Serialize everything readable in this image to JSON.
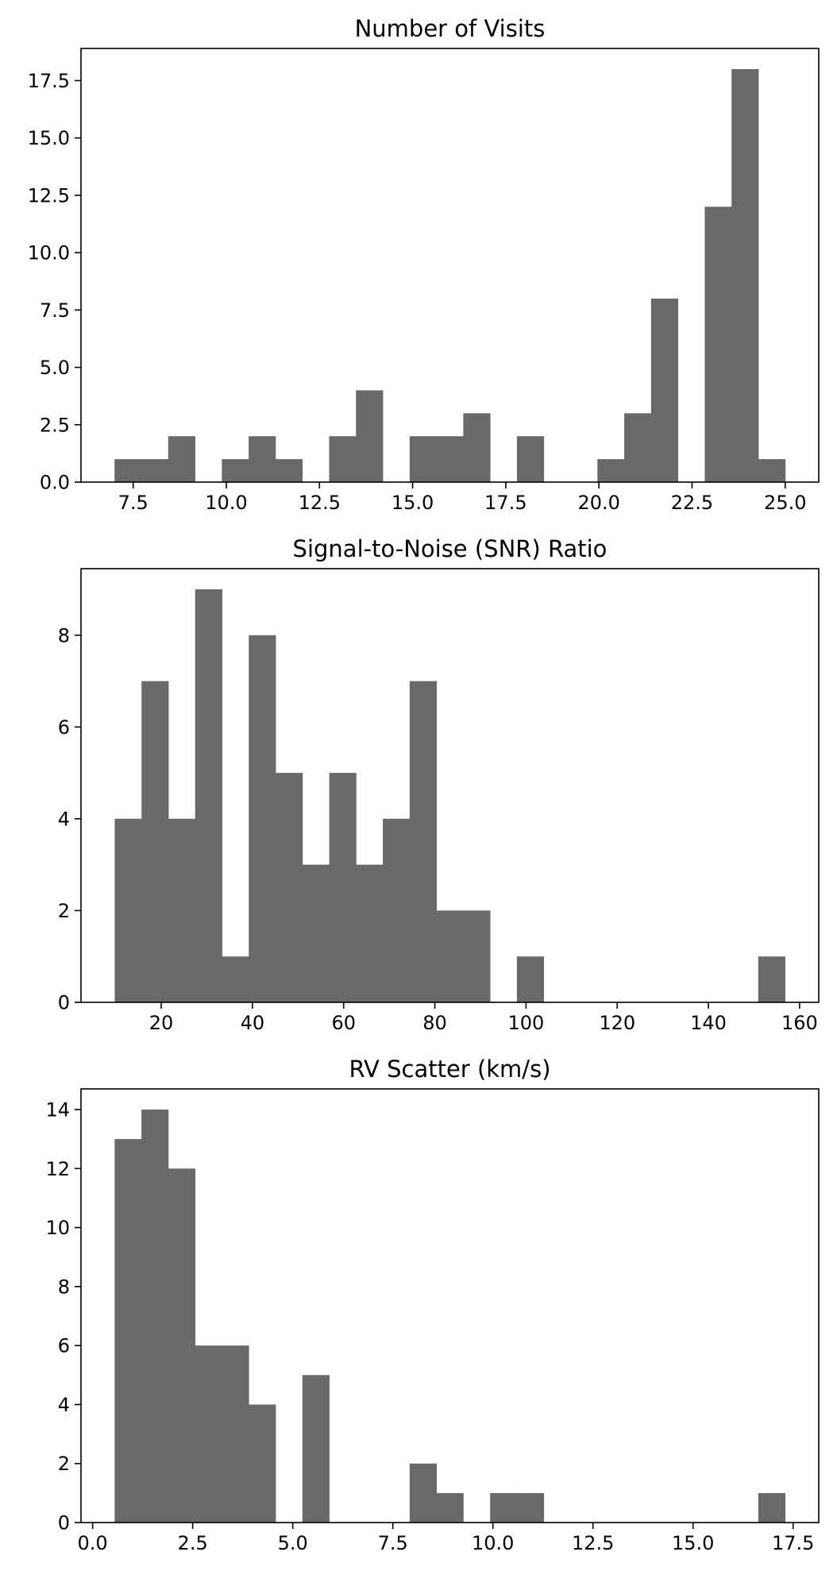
{
  "chart_data": [
    {
      "type": "bar",
      "title": "Number of Visits",
      "xlabel": "",
      "ylabel": "",
      "bin_edges": [
        7.0,
        7.72,
        8.44,
        9.16,
        9.88,
        10.6,
        11.32,
        12.04,
        12.76,
        13.48,
        14.2,
        14.92,
        15.64,
        16.36,
        17.08,
        17.8,
        18.52,
        19.24,
        19.96,
        20.68,
        21.4,
        22.12,
        22.84,
        23.56,
        24.28,
        25.0
      ],
      "values": [
        1,
        1,
        2,
        0,
        1,
        2,
        1,
        0,
        2,
        4,
        0,
        2,
        2,
        3,
        0,
        2,
        0,
        0,
        1,
        3,
        8,
        0,
        12,
        18,
        1
      ],
      "xlim": [
        6.1,
        25.9
      ],
      "ylim": [
        0,
        18.9
      ],
      "xticks": [
        7.5,
        10.0,
        12.5,
        15.0,
        17.5,
        20.0,
        22.5,
        25.0
      ],
      "xtick_labels": [
        "7.5",
        "10.0",
        "12.5",
        "15.0",
        "17.5",
        "20.0",
        "22.5",
        "25.0"
      ],
      "yticks": [
        0,
        2.5,
        5,
        7.5,
        10,
        12.5,
        15,
        17.5
      ],
      "ytick_labels": [
        "0.0",
        "2.5",
        "5.0",
        "7.5",
        "10.0",
        "12.5",
        "15.0",
        "17.5"
      ],
      "bar_color": "#696969"
    },
    {
      "type": "bar",
      "title": "Signal-to-Noise (SNR) Ratio",
      "xlabel": "",
      "ylabel": "",
      "bin_edges": [
        9.8,
        15.68,
        21.56,
        27.44,
        33.32,
        39.2,
        45.08,
        50.96,
        56.84,
        62.72,
        68.6,
        74.48,
        80.36,
        86.24,
        92.12,
        98.0,
        103.88,
        109.76,
        115.64,
        121.52,
        127.4,
        133.28,
        139.16,
        145.04,
        150.92,
        156.8
      ],
      "values": [
        4,
        7,
        4,
        9,
        1,
        8,
        5,
        3,
        5,
        3,
        4,
        7,
        2,
        2,
        0,
        1,
        0,
        0,
        0,
        0,
        0,
        0,
        0,
        0,
        1
      ],
      "xlim": [
        2.4,
        164.2
      ],
      "ylim": [
        0,
        9.45
      ],
      "xticks": [
        20,
        40,
        60,
        80,
        100,
        120,
        140,
        160
      ],
      "xtick_labels": [
        "20",
        "40",
        "60",
        "80",
        "100",
        "120",
        "140",
        "160"
      ],
      "yticks": [
        0,
        2,
        4,
        6,
        8
      ],
      "ytick_labels": [
        "0",
        "2",
        "4",
        "6",
        "8"
      ],
      "bar_color": "#696969"
    },
    {
      "type": "bar",
      "title": "RV Scatter (km/s)",
      "xlabel": "",
      "ylabel": "",
      "bin_edges": [
        0.55,
        1.22,
        1.89,
        2.56,
        3.23,
        3.9,
        4.57,
        5.24,
        5.91,
        6.58,
        7.25,
        7.92,
        8.59,
        9.26,
        9.93,
        10.6,
        11.27,
        11.94,
        12.61,
        13.28,
        13.95,
        14.62,
        15.29,
        15.96,
        16.63,
        17.3
      ],
      "values": [
        13,
        14,
        12,
        6,
        6,
        4,
        0,
        5,
        0,
        0,
        0,
        2,
        1,
        0,
        1,
        1,
        0,
        0,
        0,
        0,
        0,
        0,
        0,
        0,
        1
      ],
      "xlim": [
        -0.29,
        18.14
      ],
      "ylim": [
        0,
        14.7
      ],
      "xticks": [
        0.0,
        2.5,
        5.0,
        7.5,
        10.0,
        12.5,
        15.0,
        17.5
      ],
      "xtick_labels": [
        "0.0",
        "2.5",
        "5.0",
        "7.5",
        "10.0",
        "12.5",
        "15.0",
        "17.5"
      ],
      "yticks": [
        0,
        2,
        4,
        6,
        8,
        10,
        12,
        14
      ],
      "ytick_labels": [
        "0",
        "2",
        "4",
        "6",
        "8",
        "10",
        "12",
        "14"
      ],
      "bar_color": "#696969"
    }
  ]
}
